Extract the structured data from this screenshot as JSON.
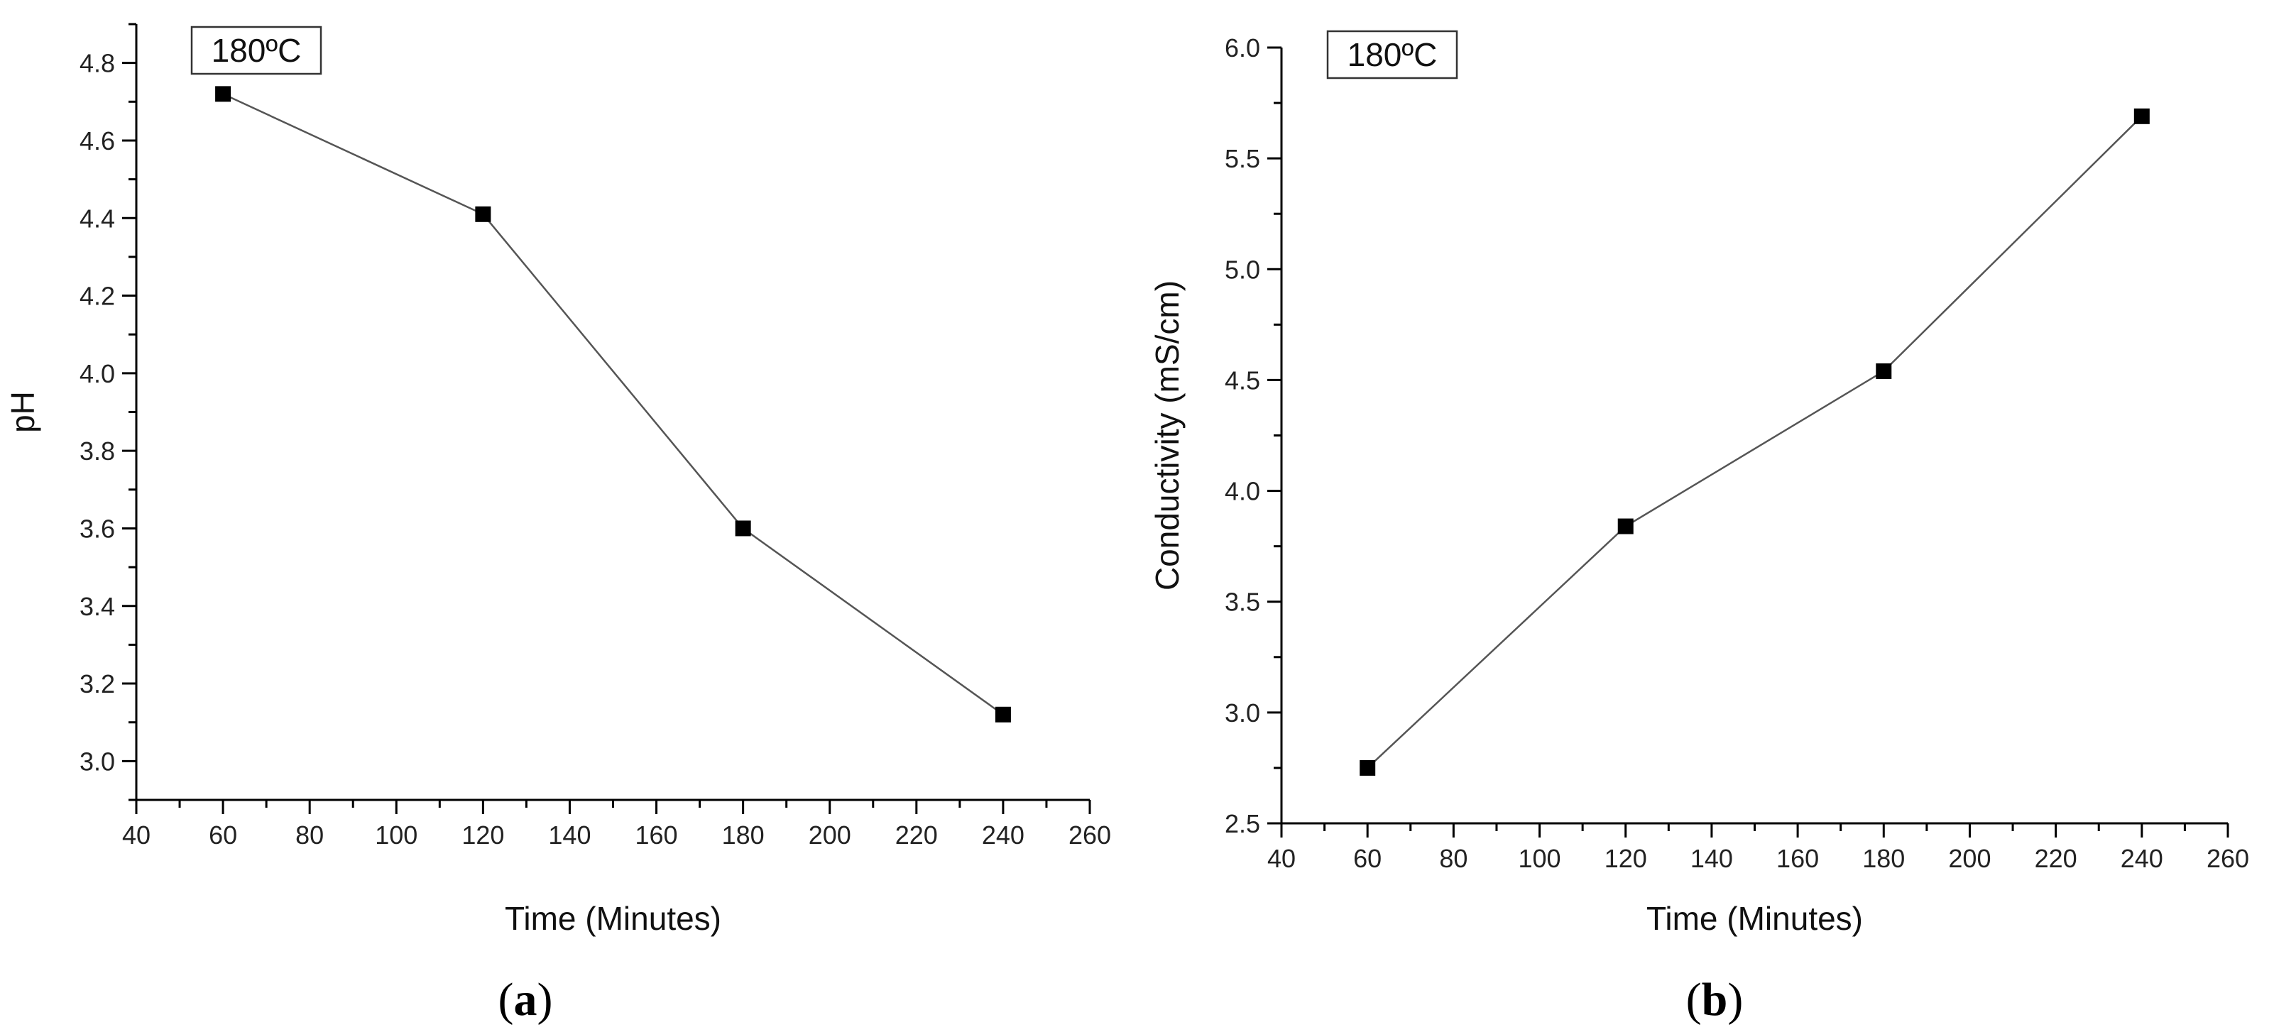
{
  "chart_data": [
    {
      "type": "line",
      "panel_label": "a",
      "badge": "180ºC",
      "xlabel": "Time (Minutes)",
      "ylabel": "pH",
      "xlim": [
        40,
        260
      ],
      "ylim": [
        2.9,
        4.9
      ],
      "xticks": [
        40,
        60,
        80,
        100,
        120,
        140,
        160,
        180,
        200,
        220,
        240,
        260
      ],
      "yticks": [
        3.0,
        3.2,
        3.4,
        3.6,
        3.8,
        4.0,
        4.2,
        4.4,
        4.6,
        4.8
      ],
      "ytick_decimals": 1,
      "series": [
        {
          "name": "pH",
          "marker": "square",
          "x": [
            60,
            120,
            180,
            240
          ],
          "y": [
            4.72,
            4.41,
            3.6,
            3.12
          ]
        }
      ]
    },
    {
      "type": "line",
      "panel_label": "b",
      "badge": "180ºC",
      "xlabel": "Time (Minutes)",
      "ylabel": "Conductivity (mS/cm)",
      "xlim": [
        40,
        260
      ],
      "ylim": [
        2.5,
        6.0
      ],
      "xticks": [
        40,
        60,
        80,
        100,
        120,
        140,
        160,
        180,
        200,
        220,
        240,
        260
      ],
      "yticks": [
        2.5,
        3.0,
        3.5,
        4.0,
        4.5,
        5.0,
        5.5,
        6.0
      ],
      "ytick_decimals": 1,
      "series": [
        {
          "name": "Conductivity",
          "marker": "square",
          "x": [
            60,
            120,
            180,
            240
          ],
          "y": [
            2.75,
            3.84,
            4.54,
            5.69
          ]
        }
      ]
    }
  ]
}
